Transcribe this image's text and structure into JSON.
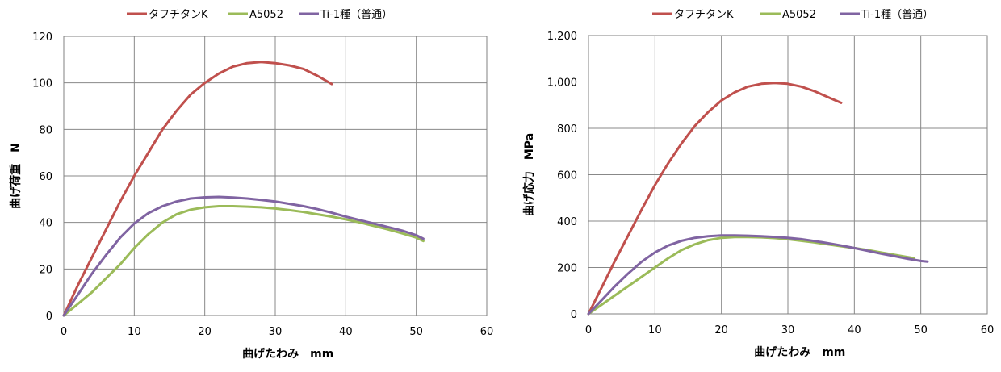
{
  "colors": {
    "red": "#c0504d",
    "green": "#9bbb59",
    "purple": "#8064a2",
    "grid": "#888888"
  },
  "chart_data": [
    {
      "type": "line",
      "xlabel": "曲げたわみ　mm",
      "ylabel": "曲げ荷重　N",
      "xlim": [
        0,
        60
      ],
      "ylim": [
        0,
        120
      ],
      "x_ticks": [
        "0",
        "10",
        "20",
        "30",
        "40",
        "50",
        "60"
      ],
      "y_ticks": [
        "0",
        "20",
        "40",
        "60",
        "80",
        "100",
        "120"
      ],
      "grid": true,
      "legend_position": "top",
      "series": [
        {
          "name": "タフチタンK",
          "color": "#c0504d",
          "x": [
            0,
            2,
            4,
            6,
            8,
            10,
            12,
            14,
            16,
            18,
            20,
            22,
            24,
            26,
            28,
            30,
            32,
            34,
            36,
            38
          ],
          "y": [
            0,
            13,
            25,
            37,
            49,
            60,
            70,
            80,
            88,
            95,
            100,
            104,
            107,
            108.5,
            109,
            108.5,
            107.5,
            106,
            103,
            99.5
          ]
        },
        {
          "name": "A5052",
          "color": "#9bbb59",
          "x": [
            0,
            2,
            4,
            6,
            8,
            10,
            12,
            14,
            16,
            18,
            20,
            22,
            24,
            26,
            28,
            30,
            32,
            34,
            36,
            38,
            40,
            42,
            44,
            46,
            48,
            50,
            51
          ],
          "y": [
            0,
            5,
            10,
            16,
            22,
            29,
            35,
            40,
            43.5,
            45.5,
            46.5,
            47,
            47,
            46.8,
            46.5,
            46,
            45.3,
            44.5,
            43.5,
            42.5,
            41.3,
            40,
            38.5,
            37,
            35.3,
            33.5,
            32
          ]
        },
        {
          "name": "Ti-1種（普通）",
          "color": "#8064a2",
          "x": [
            0,
            2,
            4,
            6,
            8,
            10,
            12,
            14,
            16,
            18,
            20,
            22,
            24,
            26,
            28,
            30,
            32,
            34,
            36,
            38,
            40,
            42,
            44,
            46,
            48,
            50,
            51
          ],
          "y": [
            0,
            9,
            18,
            26,
            33.5,
            39.5,
            44,
            47,
            49,
            50.3,
            50.8,
            51,
            50.7,
            50.3,
            49.7,
            49,
            48,
            47,
            45.7,
            44.2,
            42.5,
            41,
            39.5,
            38,
            36.5,
            34.5,
            33
          ]
        }
      ]
    },
    {
      "type": "line",
      "xlabel": "曲げたわみ　mm",
      "ylabel": "曲げ応力　MPa",
      "xlim": [
        0,
        60
      ],
      "ylim": [
        0,
        1200
      ],
      "x_ticks": [
        "0",
        "10",
        "20",
        "30",
        "40",
        "50",
        "60"
      ],
      "y_ticks": [
        "0",
        "200",
        "400",
        "600",
        "800",
        "1,000",
        "1,200"
      ],
      "grid": true,
      "legend_position": "top",
      "series": [
        {
          "name": "タフチタンK",
          "color": "#c0504d",
          "x": [
            0,
            2,
            4,
            6,
            8,
            10,
            12,
            14,
            16,
            18,
            20,
            22,
            24,
            26,
            28,
            30,
            32,
            34,
            36,
            38
          ],
          "y": [
            0,
            115,
            230,
            340,
            450,
            555,
            650,
            735,
            810,
            870,
            920,
            955,
            980,
            992,
            996,
            992,
            980,
            960,
            935,
            910
          ]
        },
        {
          "name": "A5052",
          "color": "#9bbb59",
          "x": [
            0,
            2,
            4,
            6,
            8,
            10,
            12,
            14,
            16,
            18,
            20,
            22,
            24,
            26,
            28,
            30,
            32,
            34,
            36,
            38,
            40,
            42,
            44,
            46,
            48,
            49
          ],
          "y": [
            0,
            40,
            80,
            120,
            160,
            200,
            240,
            275,
            300,
            318,
            328,
            331,
            331,
            330,
            327,
            322,
            315,
            308,
            300,
            292,
            284,
            275,
            265,
            255,
            245,
            240
          ]
        },
        {
          "name": "Ti-1種（普通）",
          "color": "#8064a2",
          "x": [
            0,
            2,
            4,
            6,
            8,
            10,
            12,
            14,
            16,
            18,
            20,
            22,
            24,
            26,
            28,
            30,
            32,
            34,
            36,
            38,
            40,
            42,
            44,
            46,
            48,
            50,
            51
          ],
          "y": [
            0,
            60,
            120,
            175,
            225,
            265,
            295,
            315,
            328,
            335,
            338,
            338,
            337,
            335,
            332,
            328,
            322,
            314,
            305,
            295,
            284,
            272,
            260,
            249,
            238,
            228,
            225
          ]
        }
      ]
    }
  ]
}
